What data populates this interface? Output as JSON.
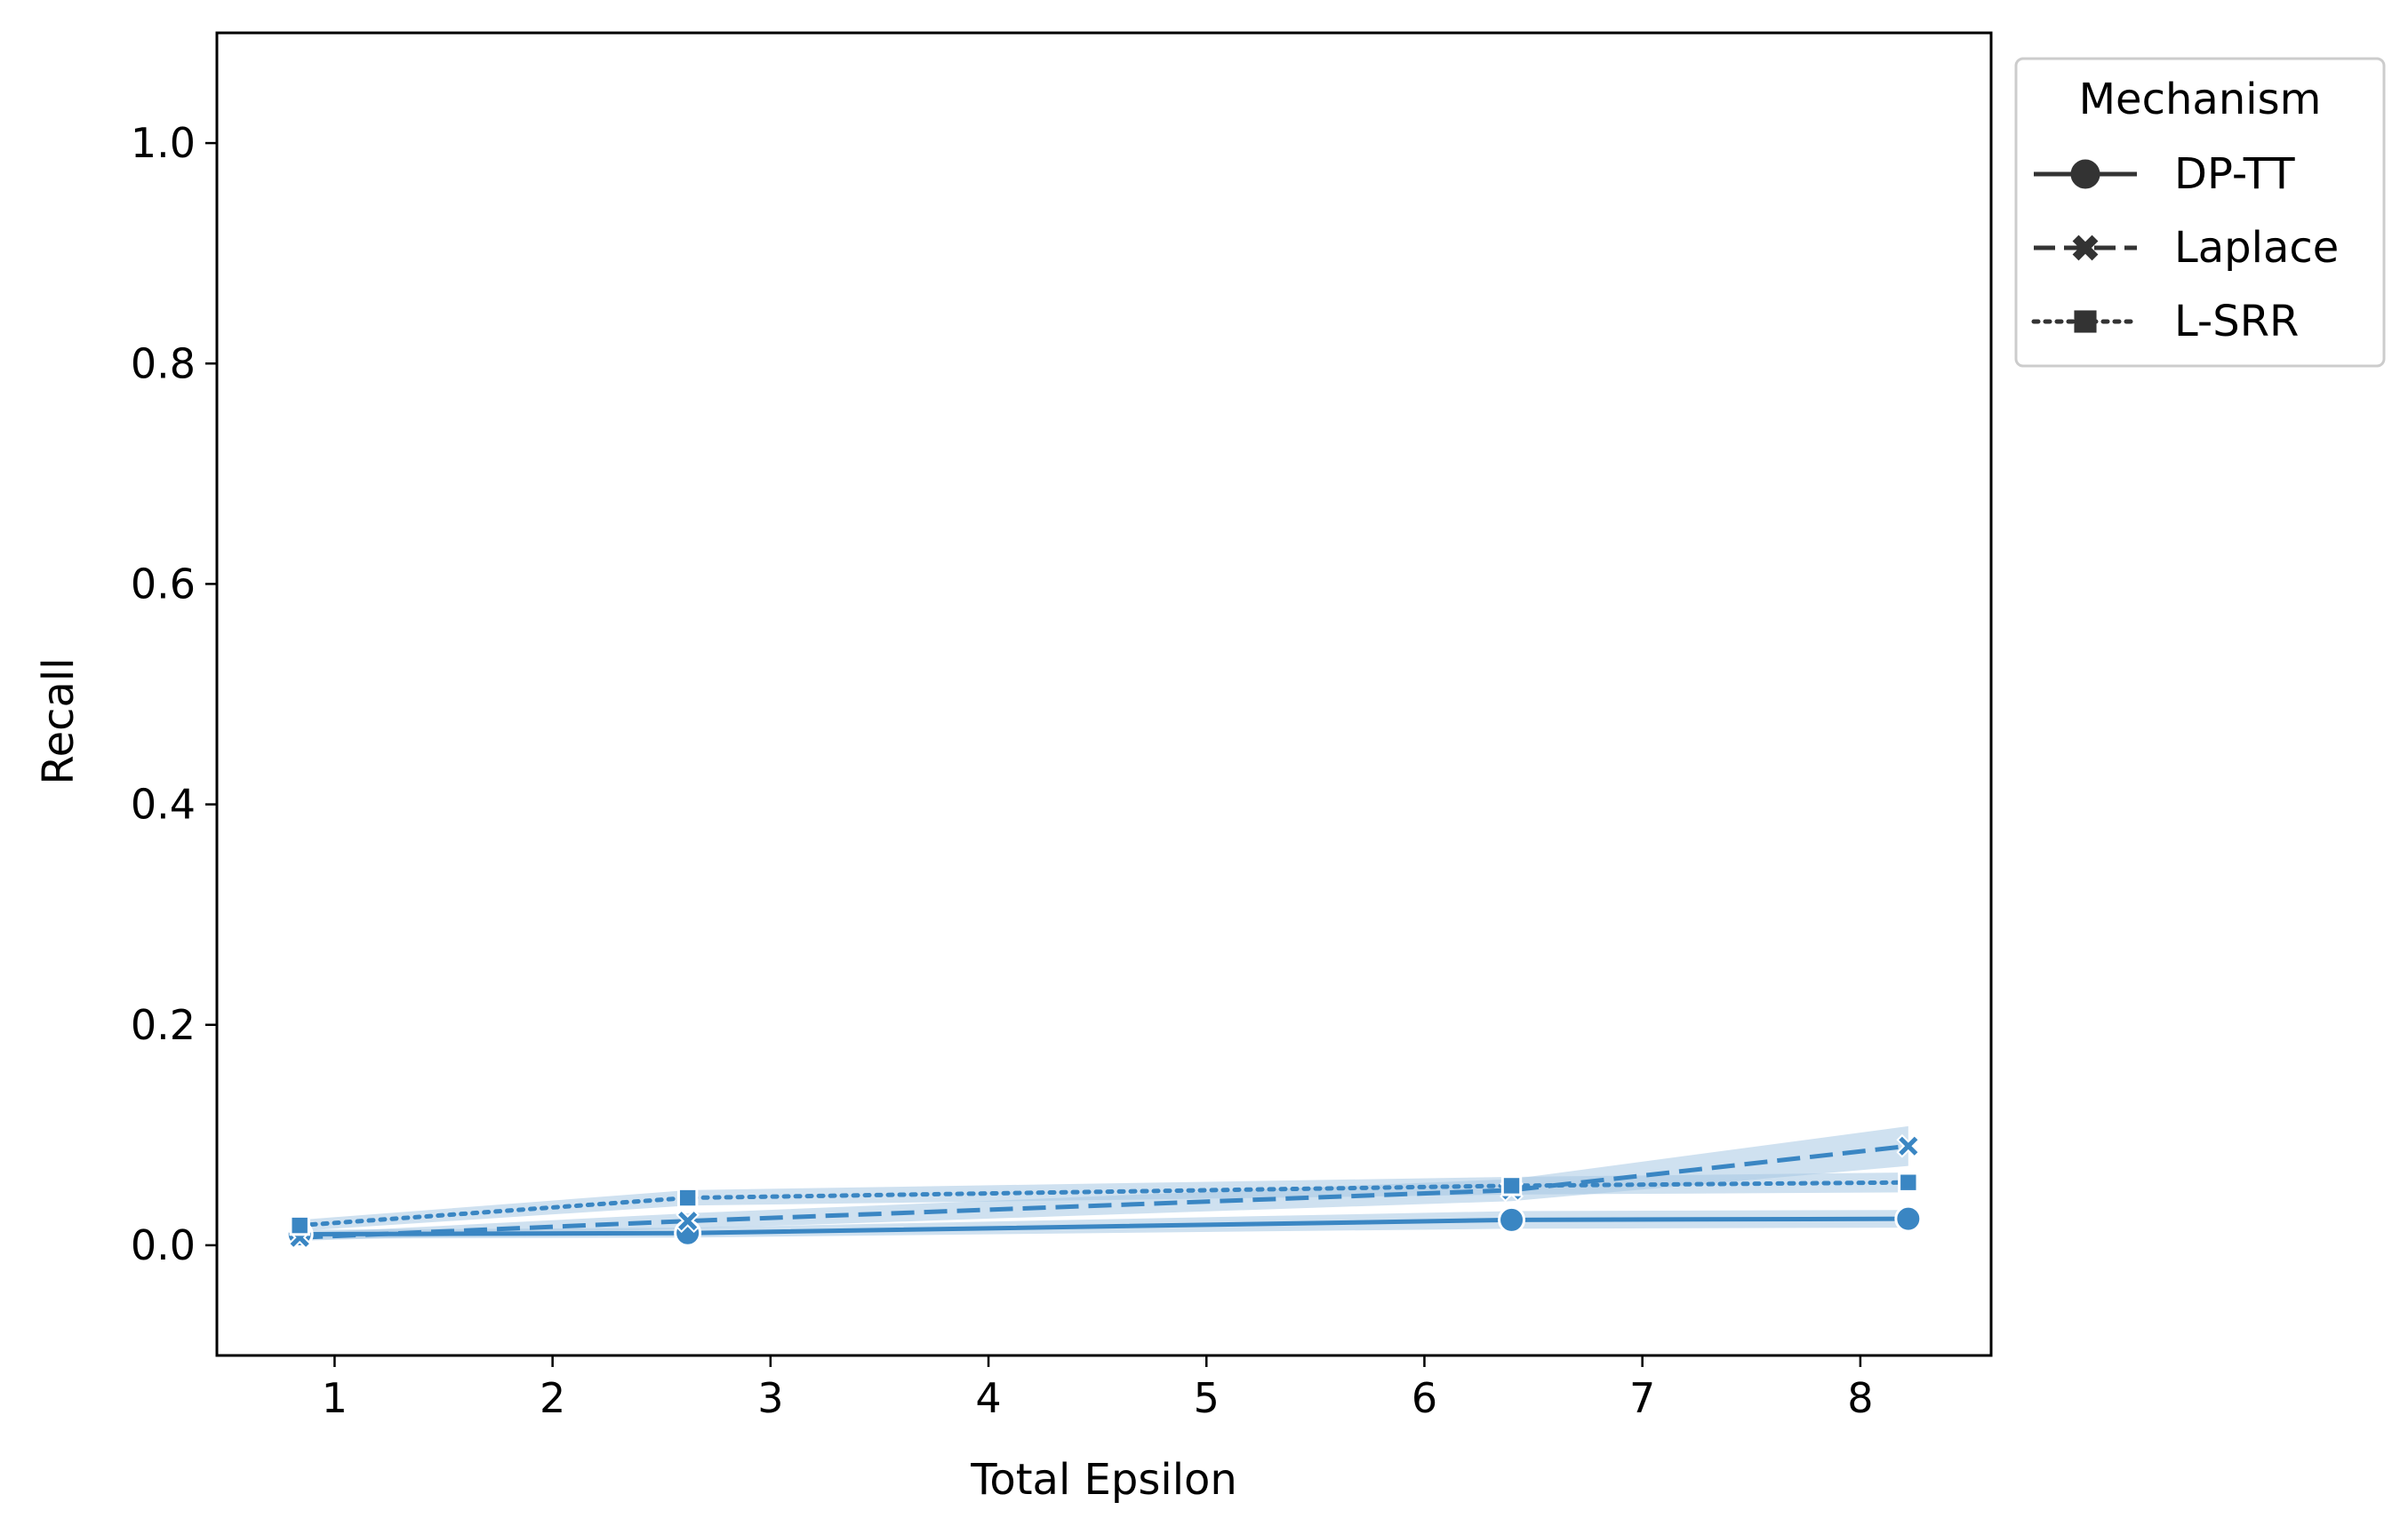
{
  "chart_data": {
    "type": "line",
    "title": "",
    "xlabel": "Total Epsilon",
    "ylabel": "Recall",
    "xlim": [
      0.46,
      8.6
    ],
    "ylim": [
      -0.1,
      1.1
    ],
    "xticks": [
      1,
      2,
      3,
      4,
      5,
      6,
      7,
      8
    ],
    "yticks": [
      0.0,
      0.2,
      0.4,
      0.6,
      0.8,
      1.0
    ],
    "xtick_labels": [
      "1",
      "2",
      "3",
      "4",
      "5",
      "6",
      "7",
      "8"
    ],
    "ytick_labels": [
      "0.0",
      "0.2",
      "0.4",
      "0.6",
      "0.8",
      "1.0"
    ],
    "grid": false,
    "color": "#3a86c3",
    "band_color": "#a8c8e4",
    "x": [
      0.84,
      2.62,
      6.4,
      8.22
    ],
    "series": [
      {
        "name": "DP-TT",
        "marker": "circle",
        "dash": "solid",
        "values": [
          0.01,
          0.011,
          0.023,
          0.024
        ],
        "lower": [
          0.006,
          0.007,
          0.015,
          0.016
        ],
        "upper": [
          0.014,
          0.016,
          0.031,
          0.032
        ]
      },
      {
        "name": "Laplace",
        "marker": "x",
        "dash": "dashed",
        "values": [
          0.007,
          0.022,
          0.05,
          0.09
        ],
        "lower": [
          0.004,
          0.015,
          0.04,
          0.072
        ],
        "upper": [
          0.011,
          0.029,
          0.06,
          0.108
        ]
      },
      {
        "name": "L-SRR",
        "marker": "square",
        "dash": "dotted",
        "values": [
          0.018,
          0.043,
          0.054,
          0.057
        ],
        "lower": [
          0.013,
          0.036,
          0.046,
          0.048
        ],
        "upper": [
          0.023,
          0.05,
          0.062,
          0.066
        ]
      }
    ],
    "legend": {
      "title": "Mechanism",
      "placement": "outside-top-right",
      "entries": [
        "DP-TT",
        "Laplace",
        "L-SRR"
      ]
    }
  }
}
